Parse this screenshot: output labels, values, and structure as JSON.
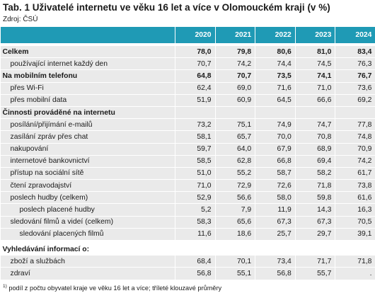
{
  "title": "Tab. 1 Uživatelé internetu ve věku 16 let a více v Olomouckém kraji (v %)",
  "source": "Zdroj: ČSÚ",
  "header": [
    "2020",
    "2021",
    "2022",
    "2023",
    "2024"
  ],
  "rows": {
    "celkem": {
      "label": "Celkem",
      "v": [
        "78,0",
        "79,8",
        "80,6",
        "81,0",
        "83,4"
      ]
    },
    "kazdy_den": {
      "label": "používající internet každý den",
      "v": [
        "70,7",
        "74,2",
        "74,4",
        "74,5",
        "76,3"
      ]
    },
    "mobil": {
      "label": "Na mobilním telefonu",
      "v": [
        "64,8",
        "70,7",
        "73,5",
        "74,1",
        "76,7"
      ]
    },
    "wifi": {
      "label": "přes Wi-Fi",
      "v": [
        "62,4",
        "69,0",
        "71,6",
        "71,0",
        "73,6"
      ]
    },
    "mobil_data": {
      "label": "přes mobilní data",
      "v": [
        "51,9",
        "60,9",
        "64,5",
        "66,6",
        "69,2"
      ]
    },
    "cinnosti": {
      "label": "Činnosti prováděné na internetu"
    },
    "email": {
      "label": "posílání/přijímání e-mailů",
      "v": [
        "73,2",
        "75,1",
        "74,9",
        "74,7",
        "77,8"
      ]
    },
    "chat": {
      "label": "zasílání zpráv přes chat",
      "v": [
        "58,1",
        "65,7",
        "70,0",
        "70,8",
        "74,8"
      ]
    },
    "nakupovani": {
      "label": "nakupování",
      "v": [
        "59,7",
        "64,0",
        "67,9",
        "68,9",
        "70,9"
      ]
    },
    "bankovnictvi": {
      "label": "internetové bankovnictví",
      "v": [
        "58,5",
        "62,8",
        "66,8",
        "69,4",
        "74,2"
      ]
    },
    "socialni": {
      "label": "přístup na sociální sítě",
      "v": [
        "51,0",
        "55,2",
        "58,7",
        "58,2",
        "61,7"
      ]
    },
    "zpravodajstvi": {
      "label": "čtení zpravodajství",
      "v": [
        "71,0",
        "72,9",
        "72,6",
        "71,8",
        "73,8"
      ]
    },
    "hudba": {
      "label": "poslech hudby (celkem)",
      "v": [
        "52,9",
        "56,6",
        "58,0",
        "59,8",
        "61,6"
      ]
    },
    "hudba_placena": {
      "label": "poslech placené hudby",
      "v": [
        "5,2",
        "7,9",
        "11,9",
        "14,3",
        "16,3"
      ]
    },
    "filmy": {
      "label": "sledování filmů a videí (celkem)",
      "v": [
        "58,3",
        "65,6",
        "67,3",
        "67,3",
        "70,5"
      ]
    },
    "filmy_placene": {
      "label": "sledování placených filmů",
      "v": [
        "11,6",
        "18,6",
        "25,7",
        "29,7",
        "39,1"
      ]
    },
    "vyhledavani": {
      "label": "Vyhledávání informací o:"
    },
    "zbozi": {
      "label": "zboží a službách",
      "v": [
        "68,4",
        "70,1",
        "73,4",
        "71,7",
        "71,8"
      ]
    },
    "zdravi": {
      "label": "zdraví",
      "v": [
        "56,8",
        "55,1",
        "56,8",
        "55,7",
        "."
      ]
    }
  },
  "footnote": {
    "marker": "1)",
    "text": " podíl z počtu obyvatel kraje ve věku 16 let a více; tříleté klouzavé průměry"
  }
}
